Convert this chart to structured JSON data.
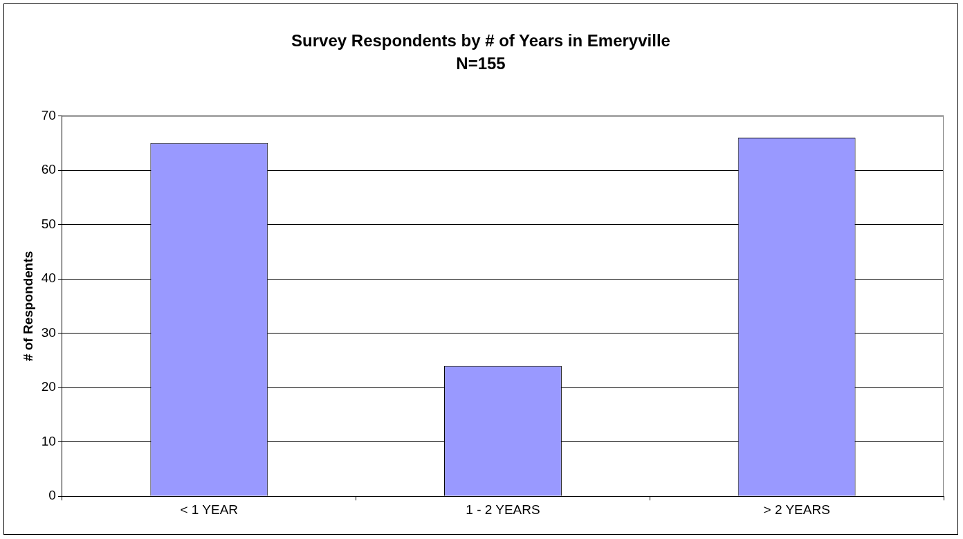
{
  "chart_data": {
    "type": "bar",
    "title": "Survey Respondents by # of Years in Emeryville",
    "subtitle": "N=155",
    "ylabel": "# of Respondents",
    "categories": [
      "< 1 YEAR",
      "1 - 2 YEARS",
      "> 2 YEARS"
    ],
    "values": [
      65,
      24,
      66
    ],
    "color": "#9999ff",
    "ylim": [
      0,
      70
    ],
    "yticks": [
      0,
      10,
      20,
      30,
      40,
      50,
      60,
      70
    ],
    "grid": "y"
  }
}
